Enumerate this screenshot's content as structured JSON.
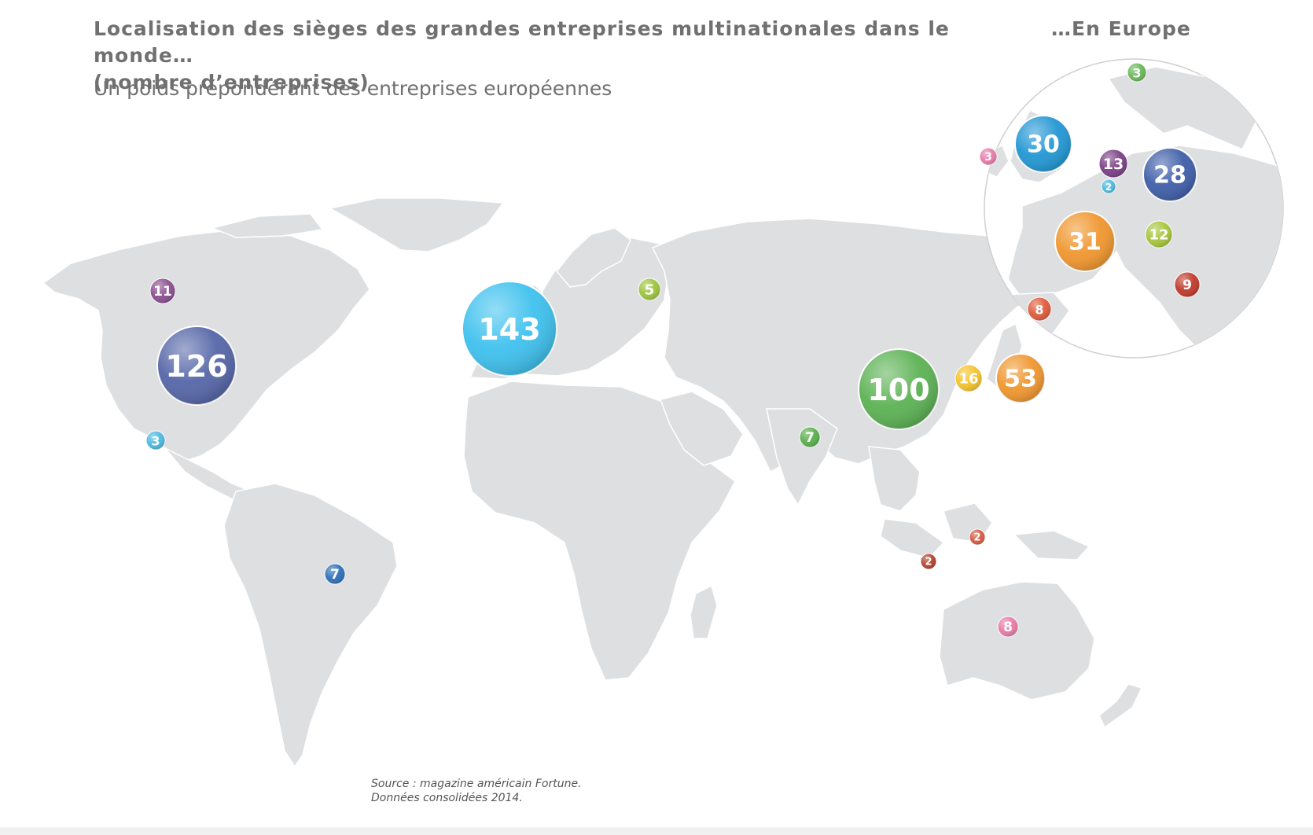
{
  "header": {
    "title_line1": "Localisation des sièges des grandes entreprises multinationales dans le monde…",
    "title_line2": "(nombre d’entreprises)",
    "subtitle": "Un poids prépondérant des entreprises européennes",
    "europe_title": "…En Europe"
  },
  "source": {
    "line1": "Source : magazine américain Fortune.",
    "line2": "Données consolidées 2014."
  },
  "world_bubbles": [
    {
      "id": "canada",
      "value": "11",
      "color": "#8a4e8f"
    },
    {
      "id": "usa",
      "value": "126",
      "color": "#5566a8"
    },
    {
      "id": "mexico",
      "value": "3",
      "color": "#4cb8e0"
    },
    {
      "id": "brazil",
      "value": "7",
      "color": "#2d6fb6"
    },
    {
      "id": "europe",
      "value": "143",
      "color": "#3ec1ee"
    },
    {
      "id": "russia",
      "value": "5",
      "color": "#9cc43c"
    },
    {
      "id": "india",
      "value": "7",
      "color": "#5aae4c"
    },
    {
      "id": "china",
      "value": "100",
      "color": "#5cb254"
    },
    {
      "id": "korea",
      "value": "16",
      "color": "#f5c32a"
    },
    {
      "id": "japan",
      "value": "53",
      "color": "#f0962e"
    },
    {
      "id": "malaysia",
      "value": "2",
      "color": "#d45a42"
    },
    {
      "id": "indonesia",
      "value": "2",
      "color": "#b0432e"
    },
    {
      "id": "australia",
      "value": "8",
      "color": "#e77aa8"
    }
  ],
  "europe_bubbles": [
    {
      "id": "norway",
      "value": "3",
      "color": "#69b758"
    },
    {
      "id": "ireland",
      "value": "3",
      "color": "#e77aa8"
    },
    {
      "id": "uk",
      "value": "30",
      "color": "#2196d3"
    },
    {
      "id": "netherlands",
      "value": "13",
      "color": "#7b3f86"
    },
    {
      "id": "belgium",
      "value": "2",
      "color": "#4cb8e0"
    },
    {
      "id": "germany",
      "value": "28",
      "color": "#3f5ea8"
    },
    {
      "id": "france",
      "value": "31",
      "color": "#f0962e"
    },
    {
      "id": "switzerland",
      "value": "12",
      "color": "#a6c63c"
    },
    {
      "id": "italy",
      "value": "9",
      "color": "#c0392b"
    },
    {
      "id": "spain",
      "value": "8",
      "color": "#e05a3a"
    }
  ]
}
